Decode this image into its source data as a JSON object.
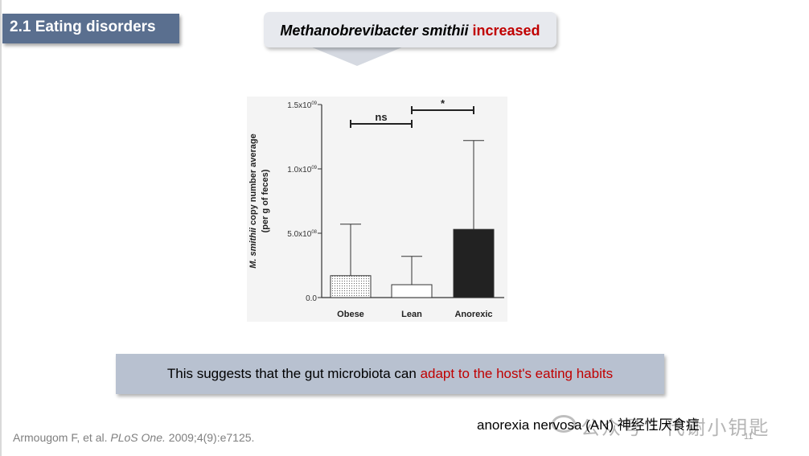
{
  "slide": {
    "section_tag": "2.1 Eating disorders",
    "callout": {
      "organism": "Methanobrevibacter smithii",
      "change": "increased"
    },
    "banner": {
      "lead": "This suggests that the gut microbiota can ",
      "highlight": "adapt to the host's eating habits"
    },
    "annotation": "anorexia nervosa (AN) 神经性厌食症",
    "citation": {
      "authors": "Armougom F, et al. ",
      "journal": "PLoS One.",
      "details": " 2009;4(9):e7125."
    },
    "page_number": "11",
    "watermark": {
      "text": "公众号 · 代谢小钥匙",
      "icon": "wechat-icon"
    }
  },
  "colors": {
    "section_tag_bg": "#5a6f8f",
    "highlight_red": "#c00000",
    "banner_bg": "#b8c1d0",
    "anorexic_bar": "#222222"
  },
  "chart_data": {
    "type": "bar",
    "categories": [
      "Obese",
      "Lean",
      "Anorexic"
    ],
    "values": [
      170000000.0,
      100000000.0,
      530000000.0
    ],
    "error_upper": [
      570000000.0,
      320000000.0,
      1220000000.0
    ],
    "ylim": [
      0,
      1500000000.0
    ],
    "yticks": [
      {
        "value": 0,
        "base": "0.0",
        "exp": ""
      },
      {
        "value": 500000000.0,
        "base": "5.0x10",
        "exp": "08"
      },
      {
        "value": 1000000000.0,
        "base": "1.0x10",
        "exp": "09"
      },
      {
        "value": 1500000000.0,
        "base": "1.5x10",
        "exp": "09"
      }
    ],
    "ylabel_italic": "M. smithii",
    "ylabel_rest": " copy number average",
    "ylabel_line2": "(per g of feces)",
    "fills": [
      "dotted",
      "white",
      "#222222"
    ],
    "significance": [
      {
        "from": 0,
        "to": 1,
        "label": "ns"
      },
      {
        "from": 1,
        "to": 2,
        "label": "*"
      }
    ],
    "grid": false
  }
}
